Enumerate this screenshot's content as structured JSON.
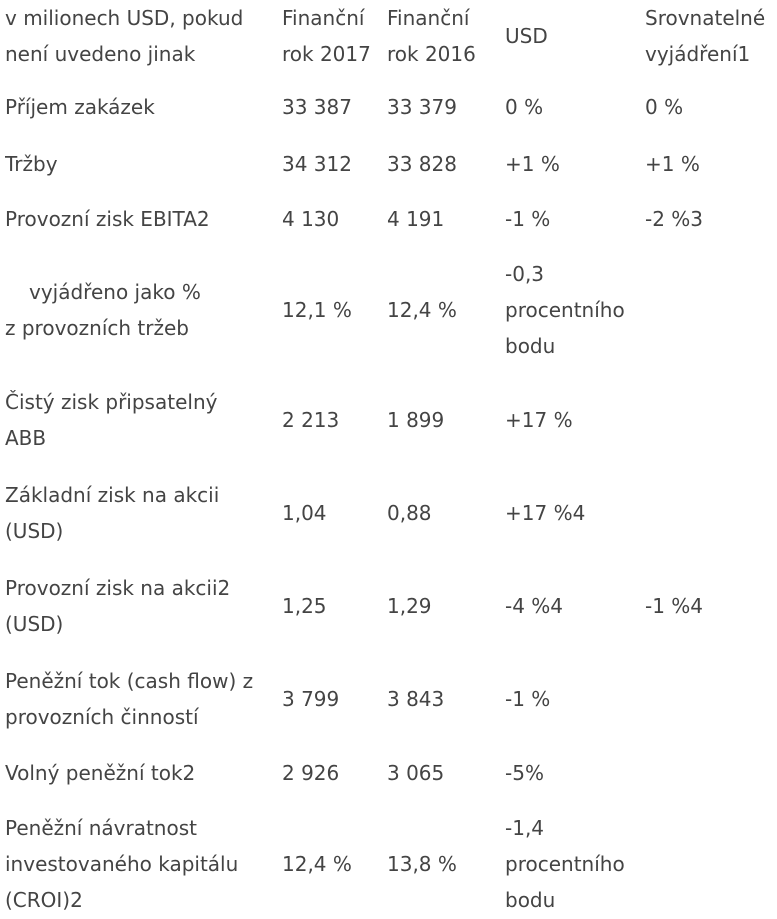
{
  "header": {
    "col0": [
      "v milionech USD, pokud",
      "není uvedeno jinak"
    ],
    "col1": [
      "Finanční",
      "rok 2017"
    ],
    "col2": [
      "Finanční",
      "rok 2016"
    ],
    "col3": "USD",
    "col4": [
      "Srovnatelné",
      "vyjádření1"
    ]
  },
  "rows": [
    {
      "label": [
        "Příjem zakázek"
      ],
      "fy2017": "33 387",
      "fy2016": "33 379",
      "usd": [
        "0 %"
      ],
      "comparable": "0 %"
    },
    {
      "label": [
        "Tržby"
      ],
      "fy2017": "34 312",
      "fy2016": "33 828",
      "usd": [
        "+1 %"
      ],
      "comparable": "+1 %"
    },
    {
      "label": [
        "Provozní zisk EBITA2"
      ],
      "fy2017": "4 130",
      "fy2016": "4 191",
      "usd": [
        "-1 %"
      ],
      "comparable": "-2 %3"
    },
    {
      "label": [
        "vyjádřeno jako %",
        "z provozních tržeb"
      ],
      "fy2017": "12,1 %",
      "fy2016": "12,4 %",
      "usd": [
        "-0,3",
        "procentního",
        "bodu"
      ],
      "comparable": ""
    },
    {
      "label": [
        "Čistý zisk připsatelný",
        "ABB"
      ],
      "fy2017": "2 213",
      "fy2016": "1 899",
      "usd": [
        "+17 %"
      ],
      "comparable": ""
    },
    {
      "label": [
        "Základní zisk na akcii",
        "(USD)"
      ],
      "fy2017": "1,04",
      "fy2016": "0,88",
      "usd": [
        "+17 %4"
      ],
      "comparable": ""
    },
    {
      "label": [
        "Provozní zisk na akcii2",
        "(USD)"
      ],
      "fy2017": "1,25",
      "fy2016": "1,29",
      "usd": [
        "-4 %4"
      ],
      "comparable": "-1 %4"
    },
    {
      "label": [
        "Peněžní tok (cash flow) z",
        "provozních činností"
      ],
      "fy2017": "3 799",
      "fy2016": "3 843",
      "usd": [
        "-1 %"
      ],
      "comparable": ""
    },
    {
      "label": [
        "Volný peněžní tok2"
      ],
      "fy2017": "2 926",
      "fy2016": "3 065",
      "usd": [
        "-5%"
      ],
      "comparable": ""
    },
    {
      "label": [
        "Peněžní návratnost",
        "investovaného kapitálu",
        "(CROI)2"
      ],
      "fy2017": "12,4 %",
      "fy2016": "13,8 %",
      "usd": [
        "-1,4",
        "procentního",
        "bodu"
      ],
      "comparable": ""
    }
  ]
}
